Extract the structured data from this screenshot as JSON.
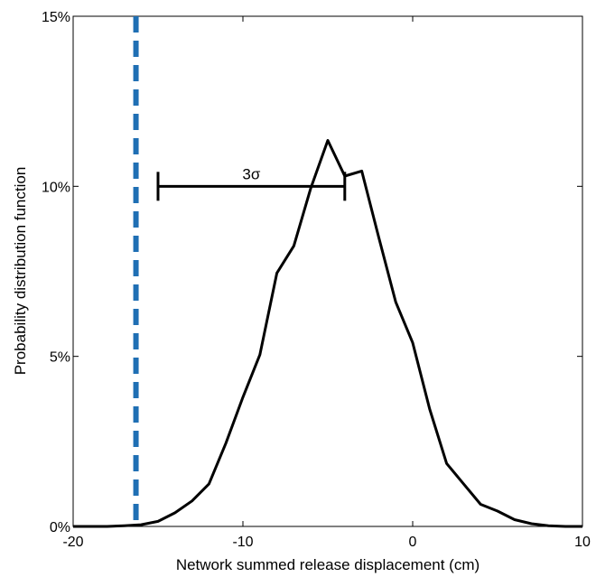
{
  "chart_data": {
    "type": "line",
    "xlabel": "Network summed release displacement (cm)",
    "ylabel": "Probability distribution function",
    "xlim": [
      -20,
      10
    ],
    "ylim": [
      0,
      15
    ],
    "x_ticks": [
      -20,
      -10,
      0,
      10
    ],
    "x_tick_labels": [
      "-20",
      "-10",
      "0",
      "10"
    ],
    "y_ticks": [
      0,
      5,
      10,
      15
    ],
    "y_tick_labels": [
      "0%",
      "5%",
      "10%",
      "15%"
    ],
    "grid": false,
    "series": [
      {
        "color": "#000000",
        "x": [
          -20,
          -19,
          -18,
          -17,
          -16,
          -15,
          -14,
          -13,
          -12,
          -11,
          -10,
          -9,
          -8,
          -7,
          -6,
          -5,
          -4,
          -3,
          -2,
          -1,
          0,
          1,
          2,
          3,
          4,
          5,
          6,
          7,
          8,
          9,
          10
        ],
        "y": [
          0,
          0,
          0,
          0.02,
          0.05,
          0.15,
          0.4,
          0.75,
          1.25,
          2.45,
          3.8,
          5.05,
          7.45,
          8.25,
          9.95,
          11.35,
          10.3,
          10.45,
          8.5,
          6.6,
          5.4,
          3.45,
          1.85,
          1.25,
          0.65,
          0.45,
          0.2,
          0.08,
          0.02,
          0,
          0
        ]
      }
    ],
    "vline": {
      "x": -16.3,
      "color": "#1f6fb4",
      "style": "dashed"
    },
    "annotation": {
      "label": "3σ",
      "x_start": -15,
      "x_end": -4,
      "y": 10
    }
  }
}
